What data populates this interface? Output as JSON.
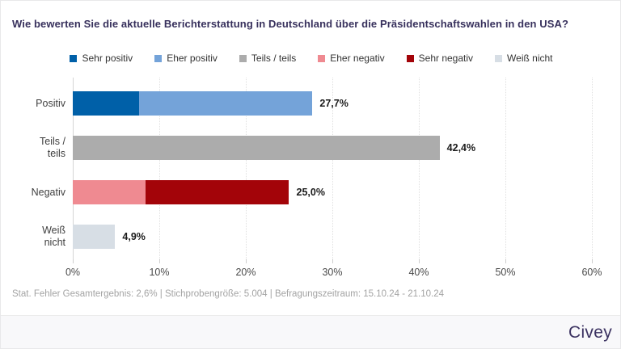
{
  "title": "Wie bewerten Sie die aktuelle Berichterstattung in Deutschland über die Präsidentschaftswahlen in den USA?",
  "legend": {
    "items": [
      {
        "label": "Sehr positiv",
        "color": "#0060a8"
      },
      {
        "label": "Eher positiv",
        "color": "#74a3d9"
      },
      {
        "label": "Teils / teils",
        "color": "#acacac"
      },
      {
        "label": "Eher negativ",
        "color": "#ef8a91"
      },
      {
        "label": "Sehr negativ",
        "color": "#a30409"
      },
      {
        "label": "Weiß nicht",
        "color": "#d7dee5"
      }
    ]
  },
  "chart_data": {
    "type": "bar",
    "orientation": "horizontal",
    "stacked": true,
    "title": "Wie bewerten Sie die aktuelle Berichterstattung in Deutschland über die Präsidentschaftswahlen in den USA?",
    "legend_position": "top",
    "legend_entries": [
      "Sehr positiv",
      "Eher positiv",
      "Teils / teils",
      "Eher negativ",
      "Sehr negativ",
      "Weiß nicht"
    ],
    "x_axis": {
      "ticks": [
        "0%",
        "10%",
        "20%",
        "30%",
        "40%",
        "50%",
        "60%"
      ],
      "values": [
        0,
        10,
        20,
        30,
        40,
        50,
        60
      ],
      "max": 60,
      "grid": true
    },
    "categories": [
      "Positiv",
      "Teils / teils",
      "Negativ",
      "Weiß nicht"
    ],
    "totals": [
      27.7,
      42.4,
      25.0,
      4.9
    ],
    "total_labels": [
      "27,7%",
      "42,4%",
      "25,0%",
      "4,9%"
    ],
    "bars": [
      {
        "category": "Positiv",
        "label_lines": [
          "Positiv"
        ],
        "total": 27.7,
        "total_label": "27,7%",
        "segments": [
          {
            "name": "Sehr positiv",
            "value": 7.7,
            "color": "#0060a8"
          },
          {
            "name": "Eher positiv",
            "value": 20.0,
            "color": "#74a3d9"
          }
        ]
      },
      {
        "category": "Teils / teils",
        "label_lines": [
          "Teils /",
          "teils"
        ],
        "total": 42.4,
        "total_label": "42,4%",
        "segments": [
          {
            "name": "Teils / teils",
            "value": 42.4,
            "color": "#acacac"
          }
        ]
      },
      {
        "category": "Negativ",
        "label_lines": [
          "Negativ"
        ],
        "total": 25.0,
        "total_label": "25,0%",
        "segments": [
          {
            "name": "Eher negativ",
            "value": 8.4,
            "color": "#ef8a91"
          },
          {
            "name": "Sehr negativ",
            "value": 16.6,
            "color": "#a30409"
          }
        ]
      },
      {
        "category": "Weiß nicht",
        "label_lines": [
          "Weiß",
          "nicht"
        ],
        "total": 4.9,
        "total_label": "4,9%",
        "segments": [
          {
            "name": "Weiß nicht",
            "value": 4.9,
            "color": "#d7dee5"
          }
        ]
      }
    ]
  },
  "footer": {
    "note": "Stat. Fehler Gesamtergebnis: 2,6% | Stichprobengröße: 5.004 | Befragungszeitraum: 15.10.24 - 21.10.24",
    "brand": "Civey"
  },
  "colors": {
    "title": "#37305c",
    "brand": "#3b3261",
    "grid": "#e0e0e0",
    "zero_line": "#d6d6d6",
    "value_label": "#1b1b1b",
    "axis_label": "#4a4a4a",
    "footnote": "#a3a3a3",
    "strip_background": "#f8f8fa"
  }
}
